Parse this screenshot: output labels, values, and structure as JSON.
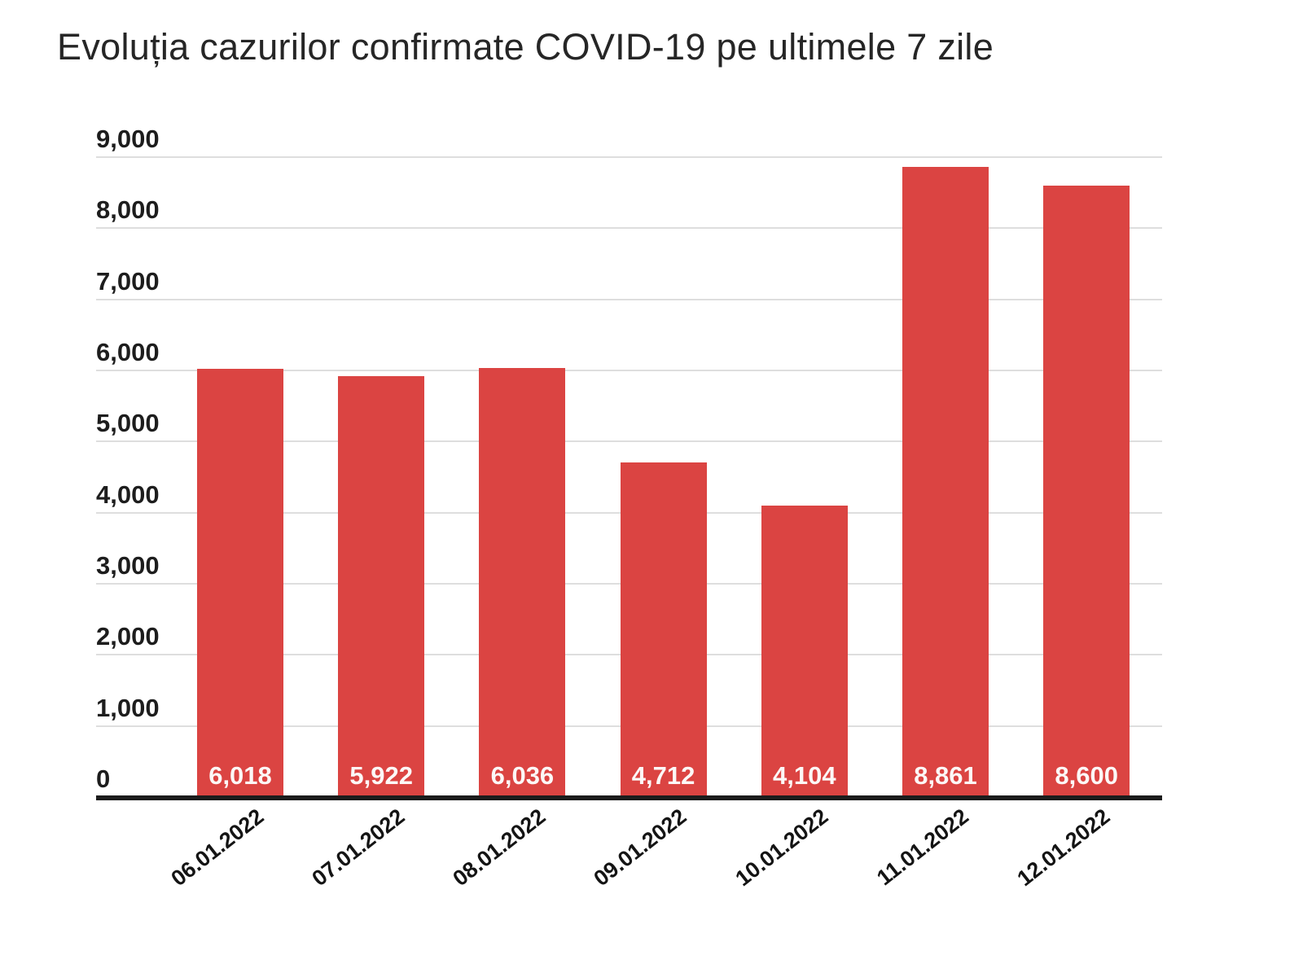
{
  "title": "Evoluția cazurilor confirmate COVID-19 pe ultimele 7 zile",
  "chart_data": {
    "type": "bar",
    "title": "Evoluția cazurilor confirmate COVID-19 pe ultimele 7 zile",
    "categories": [
      "06.01.2022",
      "07.01.2022",
      "08.01.2022",
      "09.01.2022",
      "10.01.2022",
      "11.01.2022",
      "12.01.2022"
    ],
    "values": [
      6018,
      5922,
      6036,
      4712,
      4104,
      8861,
      8600
    ],
    "value_labels": [
      "6,018",
      "5,922",
      "6,036",
      "4,712",
      "4,104",
      "8,861",
      "8,600"
    ],
    "y_ticks": [
      {
        "value": 0,
        "label": "0"
      },
      {
        "value": 1000,
        "label": "1,000"
      },
      {
        "value": 2000,
        "label": "2,000"
      },
      {
        "value": 3000,
        "label": "3,000"
      },
      {
        "value": 4000,
        "label": "4,000"
      },
      {
        "value": 5000,
        "label": "5,000"
      },
      {
        "value": 6000,
        "label": "6,000"
      },
      {
        "value": 7000,
        "label": "7,000"
      },
      {
        "value": 8000,
        "label": "8,000"
      },
      {
        "value": 9000,
        "label": "9,000"
      }
    ],
    "ylim": [
      0,
      9000
    ],
    "grid": true,
    "legend": "none",
    "xlabel": "",
    "ylabel": "",
    "colors": {
      "bar": "#db4442",
      "value_label": "#fcf8f7",
      "gridline": "#dedede",
      "axis_line": "#1c1c1c",
      "tick_text": "#1d1d1d",
      "title_text": "#262626",
      "background": "#ffffff"
    }
  }
}
